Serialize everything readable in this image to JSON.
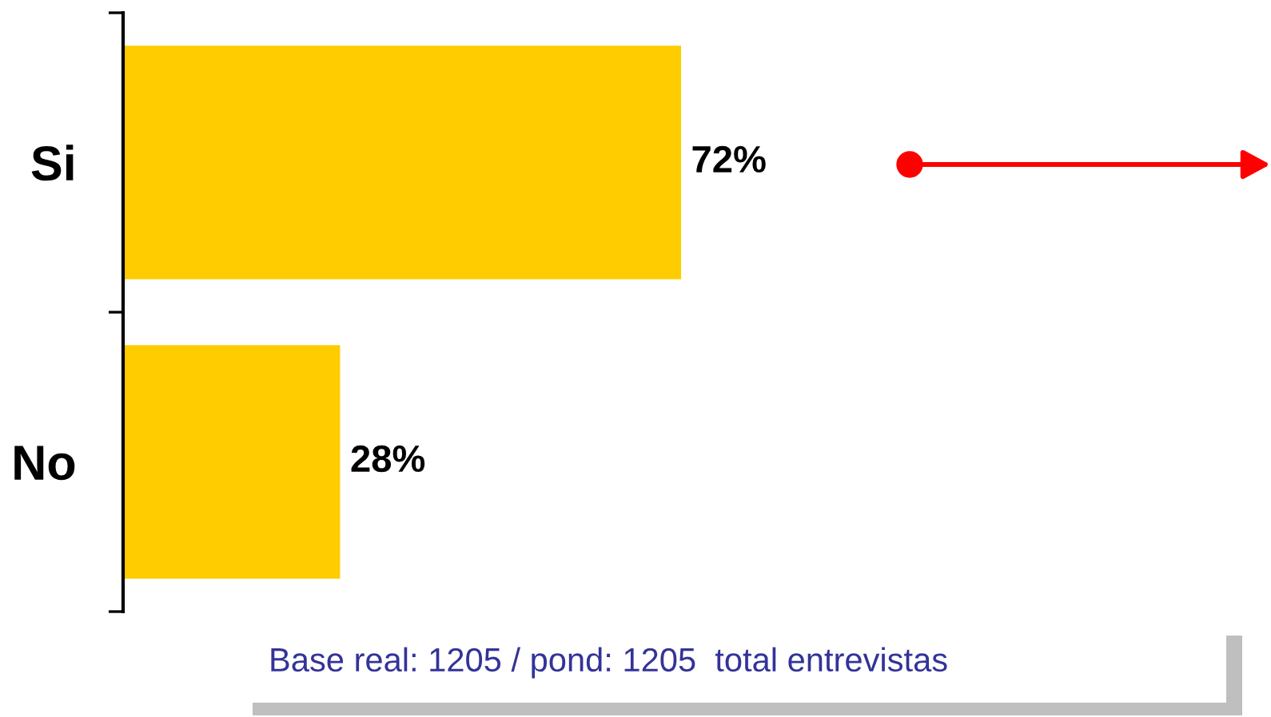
{
  "chart_data": {
    "type": "bar",
    "orientation": "horizontal",
    "categories": [
      "Si",
      "No"
    ],
    "values": [
      72,
      28
    ],
    "color": "#ffcc00",
    "value_labels": [
      "72%",
      "28%"
    ],
    "tick_labels": "y",
    "annotations": [
      "Base real: 1205 / pond: 1205  total entrevistas"
    ]
  }
}
